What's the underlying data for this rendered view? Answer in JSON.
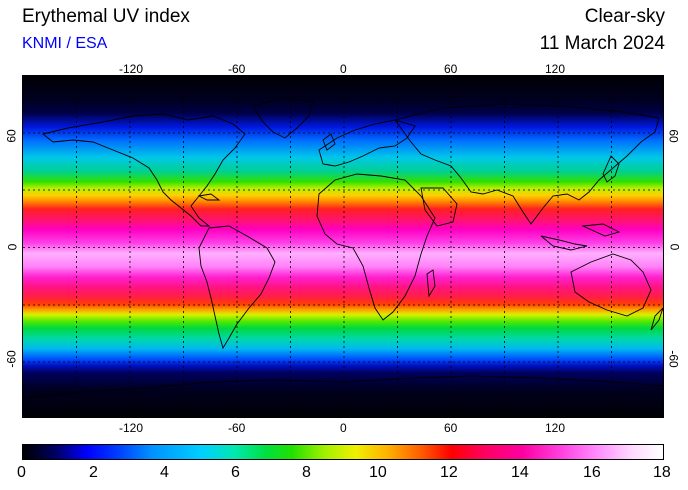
{
  "header": {
    "title": "Erythemal UV index",
    "subtitle": "KNMI / ESA",
    "mode": "Clear-sky",
    "date": "11 March 2024"
  },
  "map": {
    "lon_ticks": [
      "-120",
      "-60",
      "0",
      "60",
      "120"
    ],
    "lat_ticks": [
      "60",
      "0",
      "-60"
    ],
    "lon_range": [
      -180,
      180
    ],
    "lat_range": [
      -90,
      90
    ],
    "grid_spacing_deg": 30
  },
  "colorbar": {
    "labels": [
      "0",
      "2",
      "4",
      "6",
      "8",
      "10",
      "12",
      "14",
      "16",
      "18"
    ],
    "range": [
      0,
      18
    ]
  },
  "colors": {
    "subtitle": "#0000ff",
    "peak_uv": "#ffb0ff",
    "low_uv": "#000005"
  }
}
